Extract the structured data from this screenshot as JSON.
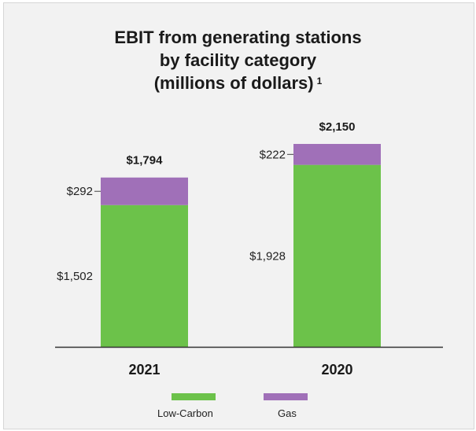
{
  "chart_data": {
    "type": "bar",
    "stacked": true,
    "title_lines": [
      "EBIT from generating stations",
      "by facility category",
      "(millions of dollars)"
    ],
    "title_footnote": "1",
    "categories": [
      "2021",
      "2020"
    ],
    "totals": [
      "$1,794",
      "$2,150"
    ],
    "series": [
      {
        "name": "Low-Carbon",
        "color": "#6cc24a",
        "values": [
          1502,
          1928
        ],
        "labels": [
          "$1,502",
          "$1,928"
        ]
      },
      {
        "name": "Gas",
        "color": "#a070b8",
        "values": [
          292,
          222
        ],
        "labels": [
          "$292",
          "$222"
        ]
      }
    ],
    "ylim": [
      0,
      2150
    ],
    "grid": false,
    "legend_position": "bottom"
  }
}
